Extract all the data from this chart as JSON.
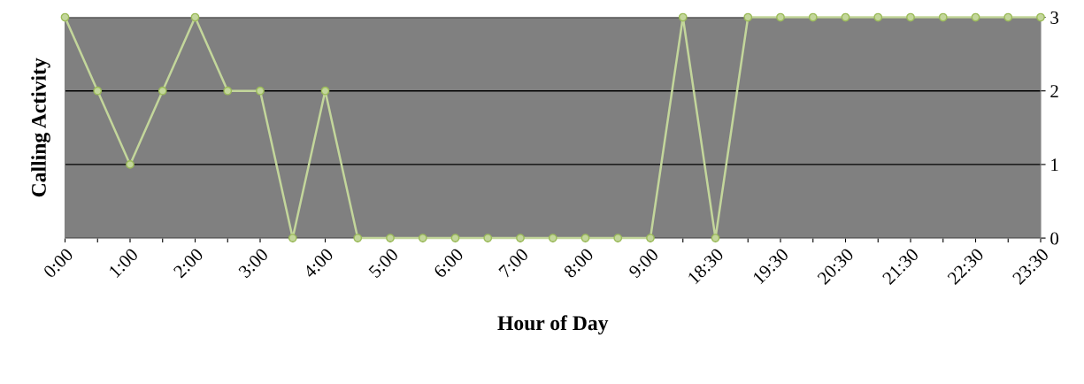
{
  "chart_data": {
    "type": "line",
    "xlabel": "Hour of Day",
    "ylabel": "Calling Activity",
    "categories": [
      "0:00",
      null,
      "1:00",
      null,
      "2:00",
      null,
      "3:00",
      null,
      "4:00",
      null,
      "5:00",
      null,
      "6:00",
      null,
      "7:00",
      null,
      "8:00",
      null,
      "9:00",
      null,
      "18:30",
      null,
      "19:30",
      null,
      "20:30",
      null,
      "21:30",
      null,
      "22:30",
      null,
      "23:30"
    ],
    "series": [
      {
        "color": "#c3d69b",
        "values": [
          3,
          2,
          1,
          2,
          3,
          2,
          2,
          0,
          2,
          0,
          0,
          0,
          0,
          0,
          0,
          0,
          0,
          0,
          0,
          3,
          0,
          3,
          3,
          3,
          3,
          3,
          3,
          3,
          3,
          3,
          3
        ]
      }
    ],
    "ylim": [
      0,
      3
    ],
    "yticks": [
      0,
      1,
      2,
      3
    ],
    "grid": "y",
    "marker": "circle",
    "line_style": "solid",
    "legend": false
  }
}
